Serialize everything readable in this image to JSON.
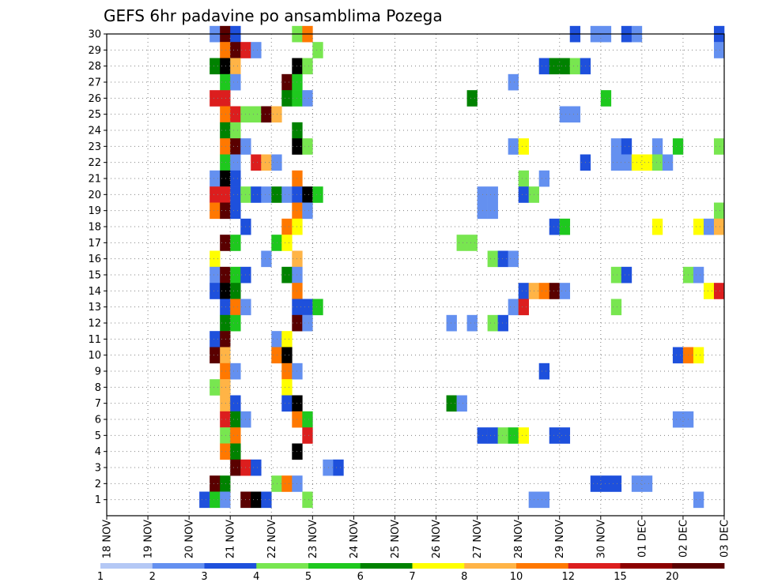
{
  "chart_data": {
    "type": "heatmap",
    "title": "GEFS 6hr padavine po ansamblima Pozega",
    "xlabel": "",
    "ylabel": "",
    "x_ticks": [
      "18 NOV",
      "19 NOV",
      "20 NOV",
      "21 NOV",
      "22 NOV",
      "23 NOV",
      "24 NOV",
      "25 NOV",
      "26 NOV",
      "27 NOV",
      "28 NOV",
      "29 NOV",
      "30 NOV",
      "01 DEC",
      "02 DEC",
      "03 DEC"
    ],
    "y_ticks": [
      1,
      2,
      3,
      4,
      5,
      6,
      7,
      8,
      9,
      10,
      11,
      12,
      13,
      14,
      15,
      16,
      17,
      18,
      19,
      20,
      21,
      22,
      23,
      24,
      25,
      26,
      27,
      28,
      29,
      30
    ],
    "xlim": [
      0,
      60
    ],
    "ylim": [
      0,
      30
    ],
    "grid": true,
    "legend": {
      "placement": "bottom",
      "labels": [
        "1",
        "2",
        "3",
        "4",
        "5",
        "6",
        "7",
        "8",
        "10",
        "12",
        "15",
        "20"
      ],
      "colors": [
        "#b4c8f5",
        "#6490f0",
        "#1e50dc",
        "#78e650",
        "#1ec81e",
        "#008200",
        "#ffff00",
        "#ffb446",
        "#ff7800",
        "#dc1e1e",
        "#8c0000",
        "#5a0000"
      ]
    },
    "cells": [
      [
        10,
        30,
        1
      ],
      [
        11,
        30,
        11
      ],
      [
        12,
        30,
        2
      ],
      [
        18,
        30,
        3
      ],
      [
        19,
        30,
        8
      ],
      [
        45,
        30,
        2
      ],
      [
        47,
        30,
        1
      ],
      [
        48,
        30,
        1
      ],
      [
        50,
        30,
        2
      ],
      [
        51,
        30,
        1
      ],
      [
        59,
        30,
        2
      ],
      [
        11,
        29,
        8
      ],
      [
        12,
        29,
        11
      ],
      [
        13,
        29,
        9
      ],
      [
        14,
        29,
        1
      ],
      [
        20,
        29,
        3
      ],
      [
        59,
        29,
        1
      ],
      [
        10,
        28,
        5
      ],
      [
        11,
        28,
        12
      ],
      [
        12,
        28,
        7
      ],
      [
        18,
        28,
        12
      ],
      [
        19,
        28,
        3
      ],
      [
        42,
        28,
        2
      ],
      [
        43,
        28,
        5
      ],
      [
        44,
        28,
        5
      ],
      [
        45,
        28,
        3
      ],
      [
        46,
        28,
        2
      ],
      [
        11,
        27,
        4
      ],
      [
        12,
        27,
        1
      ],
      [
        17,
        27,
        11
      ],
      [
        18,
        27,
        4
      ],
      [
        39,
        27,
        1
      ],
      [
        10,
        26,
        9
      ],
      [
        11,
        26,
        9
      ],
      [
        17,
        26,
        5
      ],
      [
        18,
        26,
        4
      ],
      [
        19,
        26,
        1
      ],
      [
        35,
        26,
        5
      ],
      [
        48,
        26,
        4
      ],
      [
        11,
        25,
        8
      ],
      [
        12,
        25,
        9
      ],
      [
        13,
        25,
        3
      ],
      [
        14,
        25,
        3
      ],
      [
        15,
        25,
        11
      ],
      [
        16,
        25,
        7
      ],
      [
        44,
        25,
        1
      ],
      [
        45,
        25,
        1
      ],
      [
        11,
        24,
        5
      ],
      [
        12,
        24,
        3
      ],
      [
        18,
        24,
        5
      ],
      [
        11,
        23,
        8
      ],
      [
        12,
        23,
        11
      ],
      [
        13,
        23,
        1
      ],
      [
        18,
        23,
        12
      ],
      [
        19,
        23,
        3
      ],
      [
        39,
        23,
        1
      ],
      [
        40,
        23,
        6
      ],
      [
        49,
        23,
        1
      ],
      [
        50,
        23,
        2
      ],
      [
        53,
        23,
        1
      ],
      [
        55,
        23,
        4
      ],
      [
        59,
        23,
        3
      ],
      [
        11,
        22,
        4
      ],
      [
        12,
        22,
        1
      ],
      [
        14,
        22,
        9
      ],
      [
        15,
        22,
        7
      ],
      [
        16,
        22,
        1
      ],
      [
        46,
        22,
        2
      ],
      [
        49,
        22,
        1
      ],
      [
        50,
        22,
        1
      ],
      [
        51,
        22,
        6
      ],
      [
        52,
        22,
        6
      ],
      [
        53,
        22,
        3
      ],
      [
        54,
        22,
        1
      ],
      [
        10,
        21,
        1
      ],
      [
        11,
        21,
        12
      ],
      [
        12,
        21,
        2
      ],
      [
        18,
        21,
        8
      ],
      [
        40,
        21,
        3
      ],
      [
        42,
        21,
        1
      ],
      [
        10,
        20,
        9
      ],
      [
        11,
        20,
        9
      ],
      [
        12,
        20,
        2
      ],
      [
        13,
        20,
        3
      ],
      [
        14,
        20,
        2
      ],
      [
        15,
        20,
        1
      ],
      [
        16,
        20,
        5
      ],
      [
        17,
        20,
        1
      ],
      [
        18,
        20,
        2
      ],
      [
        19,
        20,
        12
      ],
      [
        20,
        20,
        4
      ],
      [
        36,
        20,
        1
      ],
      [
        37,
        20,
        1
      ],
      [
        40,
        20,
        2
      ],
      [
        41,
        20,
        3
      ],
      [
        10,
        19,
        8
      ],
      [
        11,
        19,
        11
      ],
      [
        12,
        19,
        2
      ],
      [
        18,
        19,
        8
      ],
      [
        19,
        19,
        1
      ],
      [
        36,
        19,
        1
      ],
      [
        37,
        19,
        1
      ],
      [
        59,
        19,
        3
      ],
      [
        13,
        18,
        2
      ],
      [
        17,
        18,
        8
      ],
      [
        18,
        18,
        6
      ],
      [
        43,
        18,
        2
      ],
      [
        44,
        18,
        4
      ],
      [
        53,
        18,
        6
      ],
      [
        57,
        18,
        6
      ],
      [
        58,
        18,
        1
      ],
      [
        59,
        18,
        7
      ],
      [
        11,
        17,
        11
      ],
      [
        12,
        17,
        4
      ],
      [
        16,
        17,
        4
      ],
      [
        17,
        17,
        6
      ],
      [
        34,
        17,
        3
      ],
      [
        35,
        17,
        3
      ],
      [
        10,
        16,
        6
      ],
      [
        15,
        16,
        1
      ],
      [
        18,
        16,
        7
      ],
      [
        37,
        16,
        3
      ],
      [
        38,
        16,
        2
      ],
      [
        39,
        16,
        1
      ],
      [
        10,
        15,
        1
      ],
      [
        11,
        15,
        11
      ],
      [
        12,
        15,
        4
      ],
      [
        13,
        15,
        2
      ],
      [
        17,
        15,
        5
      ],
      [
        18,
        15,
        1
      ],
      [
        49,
        15,
        3
      ],
      [
        50,
        15,
        2
      ],
      [
        56,
        15,
        3
      ],
      [
        57,
        15,
        1
      ],
      [
        10,
        14,
        2
      ],
      [
        11,
        14,
        12
      ],
      [
        12,
        14,
        5
      ],
      [
        18,
        14,
        8
      ],
      [
        40,
        14,
        2
      ],
      [
        41,
        14,
        7
      ],
      [
        42,
        14,
        8
      ],
      [
        43,
        14,
        11
      ],
      [
        44,
        14,
        1
      ],
      [
        58,
        14,
        6
      ],
      [
        59,
        14,
        9
      ],
      [
        11,
        13,
        2
      ],
      [
        12,
        13,
        8
      ],
      [
        13,
        13,
        1
      ],
      [
        18,
        13,
        2
      ],
      [
        19,
        13,
        2
      ],
      [
        20,
        13,
        4
      ],
      [
        39,
        13,
        1
      ],
      [
        40,
        13,
        9
      ],
      [
        49,
        13,
        3
      ],
      [
        11,
        12,
        5
      ],
      [
        12,
        12,
        4
      ],
      [
        18,
        12,
        11
      ],
      [
        19,
        12,
        1
      ],
      [
        33,
        12,
        1
      ],
      [
        35,
        12,
        1
      ],
      [
        37,
        12,
        3
      ],
      [
        38,
        12,
        2
      ],
      [
        10,
        11,
        2
      ],
      [
        11,
        11,
        11
      ],
      [
        16,
        11,
        1
      ],
      [
        17,
        11,
        6
      ],
      [
        10,
        10,
        11
      ],
      [
        11,
        10,
        7
      ],
      [
        16,
        10,
        8
      ],
      [
        17,
        10,
        12
      ],
      [
        55,
        10,
        2
      ],
      [
        56,
        10,
        8
      ],
      [
        57,
        10,
        6
      ],
      [
        11,
        9,
        8
      ],
      [
        12,
        9,
        1
      ],
      [
        17,
        9,
        8
      ],
      [
        18,
        9,
        1
      ],
      [
        42,
        9,
        2
      ],
      [
        10,
        8,
        3
      ],
      [
        11,
        8,
        7
      ],
      [
        17,
        8,
        6
      ],
      [
        11,
        7,
        7
      ],
      [
        12,
        7,
        2
      ],
      [
        17,
        7,
        2
      ],
      [
        18,
        7,
        12
      ],
      [
        33,
        7,
        5
      ],
      [
        34,
        7,
        1
      ],
      [
        11,
        6,
        9
      ],
      [
        12,
        6,
        5
      ],
      [
        13,
        6,
        1
      ],
      [
        18,
        6,
        8
      ],
      [
        19,
        6,
        4
      ],
      [
        55,
        6,
        1
      ],
      [
        56,
        6,
        1
      ],
      [
        11,
        5,
        3
      ],
      [
        12,
        5,
        8
      ],
      [
        19,
        5,
        9
      ],
      [
        36,
        5,
        2
      ],
      [
        37,
        5,
        2
      ],
      [
        38,
        5,
        3
      ],
      [
        39,
        5,
        4
      ],
      [
        40,
        5,
        6
      ],
      [
        43,
        5,
        2
      ],
      [
        44,
        5,
        2
      ],
      [
        11,
        4,
        8
      ],
      [
        12,
        4,
        5
      ],
      [
        18,
        4,
        12
      ],
      [
        12,
        3,
        11
      ],
      [
        13,
        3,
        9
      ],
      [
        14,
        3,
        2
      ],
      [
        21,
        3,
        1
      ],
      [
        22,
        3,
        2
      ],
      [
        10,
        2,
        11
      ],
      [
        11,
        2,
        5
      ],
      [
        16,
        2,
        3
      ],
      [
        17,
        2,
        8
      ],
      [
        18,
        2,
        1
      ],
      [
        47,
        2,
        2
      ],
      [
        48,
        2,
        2
      ],
      [
        49,
        2,
        2
      ],
      [
        51,
        2,
        1
      ],
      [
        52,
        2,
        1
      ],
      [
        9,
        1,
        2
      ],
      [
        10,
        1,
        4
      ],
      [
        11,
        1,
        1
      ],
      [
        13,
        1,
        11
      ],
      [
        14,
        1,
        12
      ],
      [
        15,
        1,
        2
      ],
      [
        19,
        1,
        3
      ],
      [
        41,
        1,
        1
      ],
      [
        42,
        1,
        1
      ],
      [
        57,
        1,
        1
      ]
    ]
  }
}
